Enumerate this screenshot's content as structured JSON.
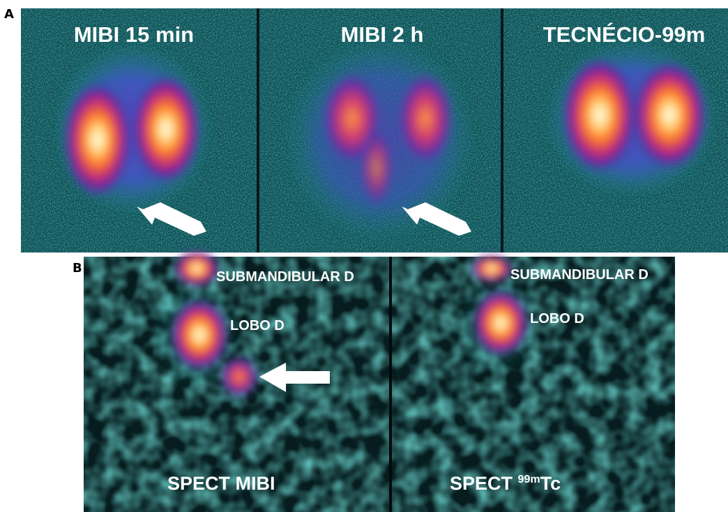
{
  "panel_a": {
    "label": "A",
    "images": [
      {
        "title": "MIBI 15 min"
      },
      {
        "title": "MIBI 2 h"
      },
      {
        "title": "TECNÉCIO-99m"
      }
    ]
  },
  "panel_b": {
    "label": "B",
    "images": [
      {
        "title": "SPECT MIBI",
        "labels": [
          "SUBMANDIBULAR D",
          "LOBO D"
        ]
      },
      {
        "title": {
          "prefix": "SPECT",
          "superscript": "99m",
          "suffix": "Tc"
        },
        "labels": [
          "SUBMANDIBULAR D",
          "LOBO D"
        ]
      }
    ]
  }
}
